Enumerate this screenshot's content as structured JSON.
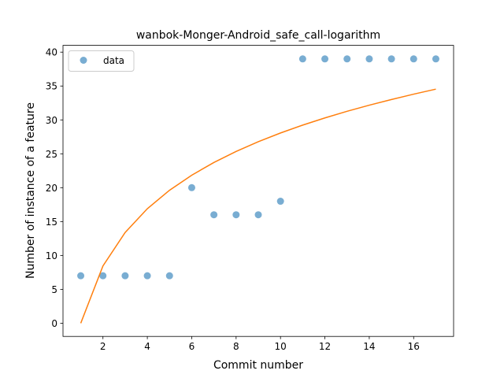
{
  "chart_data": {
    "type": "scatter",
    "title": "wanbok-Monger-Android_safe_call-logarithm",
    "xlabel": "Commit number",
    "ylabel": "Number of instance of a feature",
    "xlim": [
      0.2,
      17.8
    ],
    "ylim": [
      -1.95,
      41.0
    ],
    "xticks": [
      2,
      4,
      6,
      8,
      10,
      12,
      14,
      16
    ],
    "yticks": [
      0,
      5,
      10,
      15,
      20,
      25,
      30,
      35,
      40
    ],
    "grid": false,
    "legend_position": "upper-left",
    "series": [
      {
        "name": "data",
        "kind": "scatter",
        "color": "#1f77b4",
        "x": [
          1,
          2,
          3,
          4,
          5,
          6,
          7,
          8,
          9,
          10,
          11,
          12,
          13,
          14,
          15,
          16,
          17
        ],
        "y": [
          7,
          7,
          7,
          7,
          7,
          20,
          16,
          16,
          16,
          18,
          39,
          39,
          39,
          39,
          39,
          39,
          39
        ]
      },
      {
        "kind": "line",
        "color": "#ff7f0e",
        "x": [
          1,
          2,
          3,
          4,
          5,
          6,
          7,
          8,
          9,
          10,
          11,
          12,
          13,
          14,
          15,
          16,
          17
        ],
        "y": [
          0.0,
          8.45,
          13.39,
          16.9,
          19.62,
          21.84,
          23.72,
          25.35,
          26.79,
          28.07,
          29.23,
          30.29,
          31.27,
          32.17,
          33.01,
          33.8,
          34.54
        ]
      }
    ]
  }
}
